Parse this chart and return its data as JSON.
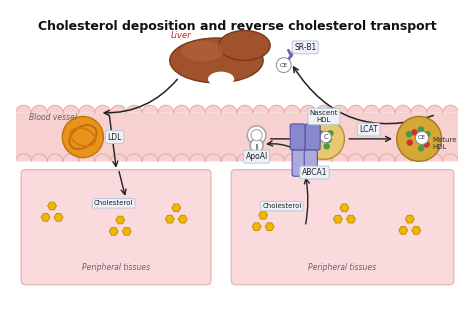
{
  "title": "Cholesterol deposition and reverse cholesterol transport",
  "bg_color": "#ffffff",
  "vessel_color": "#f7d0d0",
  "vessel_border_color": "#e8a8a8",
  "tissue_color": "#fadadd",
  "tissue_border_color": "#e8b8b8",
  "liver_color": "#a0522d",
  "arrow_color": "#333333",
  "label_box_color": "#eef2f8",
  "label_box_border": "#b8c8d8",
  "blood_vessel_label": "Blood vessel",
  "liver_label": "Liver",
  "sr_b1_label": "SR-B1",
  "ldl_label": "LDL",
  "apoa1_label": "ApoAI",
  "nascent_hdl_label": "Nascent\nHDL",
  "lcat_label": "LCAT",
  "mature_hdl_label": "Mature\nHDL",
  "abca1_label": "ABCA1",
  "cholesterol_label": "Cholesterol",
  "peripheral_label": "Peripheral tissues",
  "ce_label": "CE",
  "c_label": "C"
}
